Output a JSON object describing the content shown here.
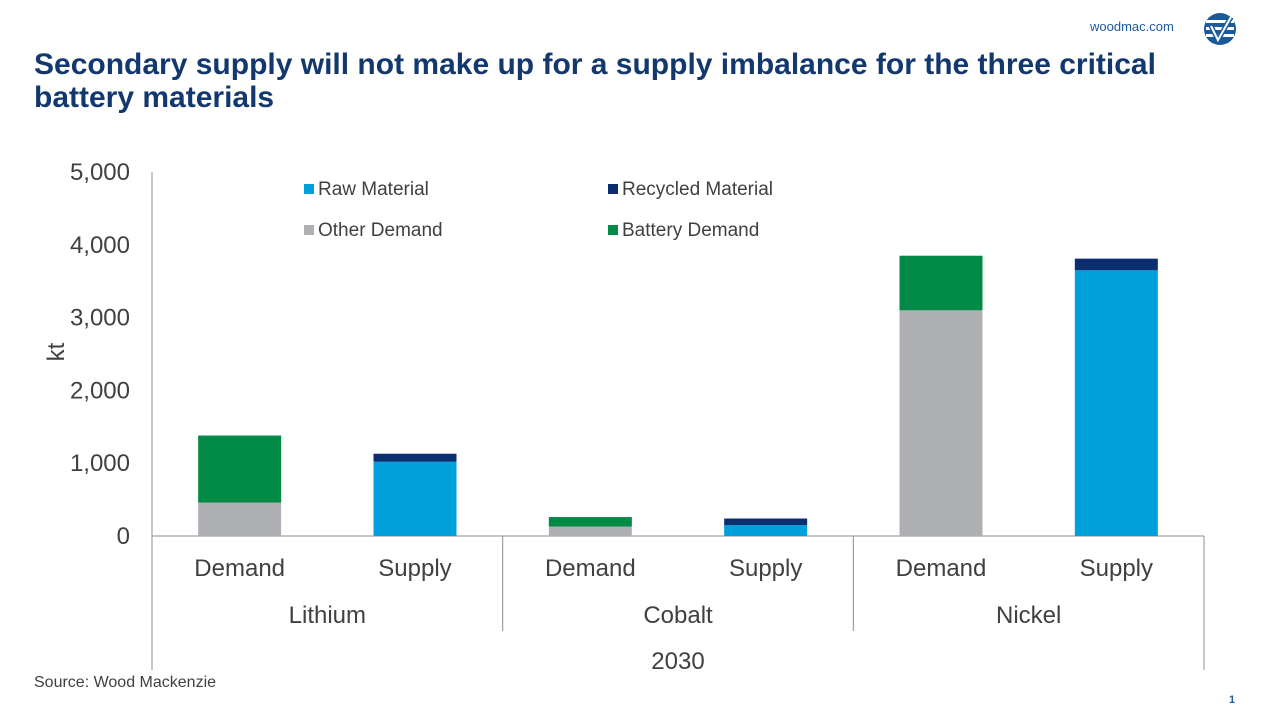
{
  "header": {
    "brand_url": "woodmac.com",
    "logo_icon": "woodmac-logo-icon",
    "title": "Secondary supply will not make up for a supply imbalance for the three critical battery materials"
  },
  "footer": {
    "source": "Source: Wood Mackenzie",
    "page_number": "1"
  },
  "colors": {
    "raw_material": "#00a0dc",
    "recycled_material": "#0b2e6f",
    "other_demand": "#afb0b3",
    "battery_demand": "#008a46",
    "axis": "#8c8c8c",
    "text": "#404040",
    "title": "#13386e",
    "brand": "#1b5a9a"
  },
  "chart_data": {
    "type": "bar",
    "stacked": true,
    "ylabel": "kt",
    "ylim": [
      0,
      5000
    ],
    "yticks": [
      0,
      1000,
      2000,
      3000,
      4000,
      5000
    ],
    "ytick_labels": [
      "0",
      "1,000",
      "2,000",
      "3,000",
      "4,000",
      "5,000"
    ],
    "grid": false,
    "legend_position": "top",
    "categories": [
      "Demand",
      "Supply",
      "Demand",
      "Supply",
      "Demand",
      "Supply"
    ],
    "groups": [
      {
        "label": "Lithium",
        "categories": [
          0,
          1
        ]
      },
      {
        "label": "Cobalt",
        "categories": [
          2,
          3
        ]
      },
      {
        "label": "Nickel",
        "categories": [
          4,
          5
        ]
      }
    ],
    "outer_label": "2030",
    "series": [
      {
        "name": "Raw Material",
        "color_key": "raw_material",
        "values": [
          0,
          1020,
          0,
          150,
          0,
          3650
        ]
      },
      {
        "name": "Recycled Material",
        "color_key": "recycled_material",
        "values": [
          0,
          110,
          0,
          90,
          0,
          160
        ]
      },
      {
        "name": "Other Demand",
        "color_key": "other_demand",
        "values": [
          460,
          0,
          130,
          0,
          3100,
          0
        ]
      },
      {
        "name": "Battery Demand",
        "color_key": "battery_demand",
        "values": [
          920,
          0,
          130,
          0,
          750,
          0
        ]
      }
    ]
  }
}
